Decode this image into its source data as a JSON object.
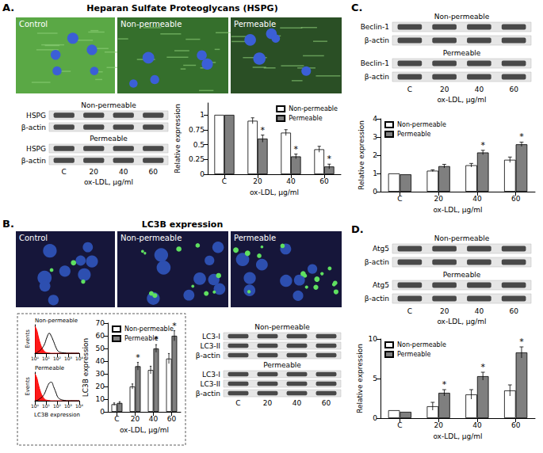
{
  "panels": [
    {
      "letter": "A.",
      "title": "Heparan Sulfate Proteoglycans (HSPG)",
      "images": [
        "Control",
        "Non-permeable",
        "Permeable"
      ],
      "blots": [
        {
          "condition": "Non-permeable",
          "rows": [
            "HSPG",
            "β-actin"
          ]
        },
        {
          "condition": "Permeable",
          "rows": [
            "HSPG",
            "β-actin"
          ]
        }
      ],
      "lanes": [
        "C",
        "20",
        "40",
        "60"
      ],
      "lanes_title": "ox-LDL, µg/ml"
    },
    {
      "letter": "B.",
      "title": "LC3B expression",
      "images": [
        "Control",
        "Non-permeable",
        "Permeable"
      ],
      "blots": [
        {
          "condition": "Non-permeable",
          "rows": [
            "LC3-I",
            "LC3-II",
            "β-actin"
          ]
        },
        {
          "condition": "Permeable",
          "rows": [
            "LC3-I",
            "LC3-II",
            "β-actin"
          ]
        }
      ],
      "lanes": [
        "C",
        "20",
        "40",
        "60"
      ]
    },
    {
      "letter": "C.",
      "blots": [
        {
          "condition": "Non-permeable",
          "rows": [
            "Beclin-1",
            "β-actin"
          ]
        },
        {
          "condition": "Permeable",
          "rows": [
            "Beclin-1",
            "β-actin"
          ]
        }
      ],
      "lanes": [
        "C",
        "20",
        "40",
        "60"
      ],
      "lanes_title": "ox-LDL, µg/ml"
    },
    {
      "letter": "D.",
      "blots": [
        {
          "condition": "Non-permeable",
          "rows": [
            "Atg5",
            "β-actin"
          ]
        },
        {
          "condition": "Permeable",
          "rows": [
            "Atg5",
            "β-actin"
          ]
        }
      ],
      "lanes": [
        "C",
        "20",
        "40",
        "60"
      ],
      "lanes_title": "ox-LDL, µg/ml"
    }
  ],
  "chart_data": [
    {
      "type": "bar",
      "categories": [
        "C",
        "20",
        "40",
        "60"
      ],
      "xlabel": "ox-LDL, µg/ml",
      "ylabel": "Relative expression",
      "ylim": [
        0,
        1.2
      ],
      "yticks": [
        0,
        0.25,
        0.5,
        0.75,
        1
      ],
      "grid": false,
      "legend": "top-right",
      "series": [
        {
          "name": "Non-permeable",
          "color": "#ffffff",
          "values": [
            1,
            0.9,
            0.7,
            0.42
          ],
          "errors": [
            0,
            0.05,
            0.05,
            0.05
          ]
        },
        {
          "name": "Permeable",
          "color": "#7f7f7f",
          "values": [
            1,
            0.6,
            0.3,
            0.13
          ],
          "errors": [
            0,
            0.06,
            0.04,
            0.04
          ],
          "annotation": "*",
          "annotated": [
            false,
            true,
            true,
            true
          ]
        }
      ]
    },
    {
      "type": "bar",
      "categories": [
        "C",
        "20",
        "40",
        "60"
      ],
      "xlabel": "ox-LDL, µg/ml",
      "ylabel": "LC3B expression",
      "ylim": [
        0,
        70
      ],
      "yticks": [
        0,
        10,
        20,
        30,
        40,
        50,
        60,
        70
      ],
      "grid": false,
      "legend": "top-left",
      "series": [
        {
          "name": "Non-permeable",
          "color": "#ffffff",
          "values": [
            6,
            20,
            33,
            42
          ],
          "errors": [
            1,
            2,
            3,
            4
          ]
        },
        {
          "name": "Permeable",
          "color": "#7f7f7f",
          "values": [
            7,
            36,
            50,
            60
          ],
          "errors": [
            1,
            3,
            3,
            4
          ],
          "annotation": "*",
          "annotated": [
            false,
            true,
            true,
            true
          ]
        }
      ]
    },
    {
      "type": "line",
      "title": "Non-permeable",
      "ylabel": "Events",
      "log": "x",
      "tick_labels": "x",
      "grid": false,
      "x": [
        1,
        1.5,
        2,
        3,
        5,
        8,
        12,
        20,
        30,
        50,
        80,
        120,
        200,
        500,
        1000,
        10000
      ],
      "xlim": [
        1,
        10000
      ],
      "xticks": [
        {
          "value": 1,
          "label": "10⁰"
        },
        {
          "value": 10,
          "label": "10¹"
        },
        {
          "value": 100,
          "label": "10²"
        },
        {
          "value": 1000,
          "label": "10³"
        },
        {
          "value": 10000,
          "label": "10⁴"
        }
      ],
      "ylim": [
        0,
        100
      ],
      "series": [
        {
          "type": "area",
          "color": "#ff0000",
          "values": [
            95,
            80,
            60,
            35,
            15,
            5,
            2,
            1,
            0,
            0,
            0,
            0,
            0,
            0,
            0,
            0
          ]
        },
        {
          "type": "line",
          "color": "#000000",
          "values": [
            0,
            2,
            5,
            10,
            20,
            35,
            55,
            70,
            60,
            40,
            20,
            8,
            3,
            1,
            0,
            0
          ]
        }
      ]
    },
    {
      "type": "line",
      "title": "Permeable",
      "xlabel": "LC3B expression",
      "ylabel": "Events",
      "log": "x",
      "tick_labels": "x",
      "grid": false,
      "x": [
        1,
        1.5,
        2,
        3,
        5,
        8,
        12,
        20,
        30,
        50,
        80,
        120,
        200,
        500,
        1000,
        10000
      ],
      "xlim": [
        1,
        10000
      ],
      "xticks": [
        {
          "value": 1,
          "label": "10⁰"
        },
        {
          "value": 10,
          "label": "10¹"
        },
        {
          "value": 100,
          "label": "10²"
        },
        {
          "value": 1000,
          "label": "10³"
        },
        {
          "value": 10000,
          "label": "10⁴"
        }
      ],
      "ylim": [
        0,
        100
      ],
      "series": [
        {
          "type": "area",
          "color": "#ff0000",
          "values": [
            95,
            80,
            60,
            35,
            15,
            5,
            2,
            1,
            0,
            0,
            0,
            0,
            0,
            0,
            0,
            0
          ]
        },
        {
          "type": "line",
          "color": "#000000",
          "values": [
            0,
            1,
            3,
            8,
            15,
            28,
            45,
            62,
            65,
            48,
            28,
            12,
            5,
            1,
            0,
            0
          ]
        }
      ]
    },
    {
      "type": "bar",
      "categories": [
        "C",
        "20",
        "40",
        "60"
      ],
      "xlabel": "ox-LDL, µg/ml",
      "ylabel": "Relative expression",
      "ylim": [
        0,
        4
      ],
      "yticks": [
        0,
        1,
        2,
        3,
        4
      ],
      "grid": false,
      "legend": "top-left",
      "series": [
        {
          "name": "Non-permeable",
          "color": "#ffffff",
          "values": [
            1,
            1.15,
            1.45,
            1.75
          ],
          "errors": [
            0,
            0.05,
            0.1,
            0.15
          ]
        },
        {
          "name": "Permeable",
          "color": "#7f7f7f",
          "values": [
            0.95,
            1.4,
            2.15,
            2.6
          ],
          "errors": [
            0,
            0.1,
            0.12,
            0.12
          ],
          "annotation": "*",
          "annotated": [
            false,
            false,
            true,
            true
          ]
        }
      ]
    },
    {
      "type": "bar",
      "categories": [
        "C",
        "20",
        "40",
        "60"
      ],
      "xlabel": "ox-LDL, µg/ml",
      "ylabel": "Relative expression",
      "ylim": [
        0,
        10
      ],
      "yticks": [
        0,
        5,
        10
      ],
      "grid": false,
      "legend": "top-left",
      "series": [
        {
          "name": "Non-permeable",
          "color": "#ffffff",
          "values": [
            1,
            1.5,
            3,
            3.5
          ],
          "errors": [
            0,
            0.5,
            0.6,
            0.7
          ]
        },
        {
          "name": "Permeable",
          "color": "#7f7f7f",
          "values": [
            0.8,
            3.2,
            5.3,
            8.3
          ],
          "errors": [
            0,
            0.4,
            0.5,
            0.7
          ],
          "annotation": "*",
          "annotated": [
            false,
            true,
            true,
            true
          ]
        }
      ]
    }
  ]
}
